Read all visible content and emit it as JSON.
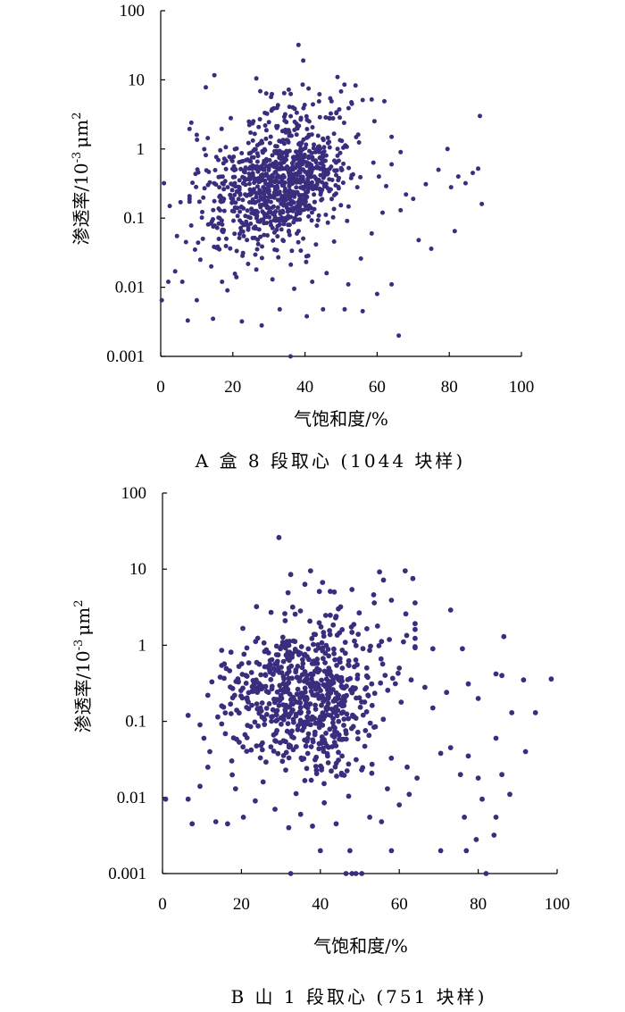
{
  "chart_data": [
    {
      "type": "scatter",
      "caption": "A 盒 8 段取心 (1044 块样)",
      "xlabel": "气饱和度/%",
      "ylabel_main": "渗透率/10",
      "ylabel_sup": "-3",
      "ylabel_unit": "μm",
      "ylabel_unit_sup": "2",
      "xlim": [
        0,
        100
      ],
      "ylim": [
        0.001,
        100
      ],
      "yscale": "log",
      "xticks": [
        "0",
        "20",
        "40",
        "60",
        "80",
        "100"
      ],
      "yticks": [
        "0.001",
        "0.01",
        "0.1",
        "1",
        "10",
        "100"
      ],
      "grid": false,
      "color": "#3a2d7e",
      "points": [
        [
          38.2,
          32
        ],
        [
          39.5,
          19
        ],
        [
          49,
          11
        ],
        [
          26.5,
          10.5
        ],
        [
          12.5,
          7.8
        ],
        [
          54,
          8.3
        ],
        [
          35.5,
          7.2
        ],
        [
          41,
          7.5
        ],
        [
          44,
          6.2
        ],
        [
          50,
          6.8
        ],
        [
          56,
          5.1
        ],
        [
          58.5,
          5.2
        ],
        [
          62,
          4.9
        ],
        [
          47,
          5.4
        ],
        [
          32.5,
          4.3
        ],
        [
          53,
          4.5
        ],
        [
          8.5,
          2.4
        ],
        [
          10,
          1.6
        ],
        [
          88.5,
          3.0
        ],
        [
          64,
          1.5
        ],
        [
          66.5,
          0.9
        ],
        [
          79.5,
          1.0
        ],
        [
          77,
          0.5
        ],
        [
          86.5,
          0.45
        ],
        [
          82.5,
          0.4
        ],
        [
          84.5,
          0.32
        ],
        [
          88,
          0.52
        ],
        [
          80.5,
          0.28
        ],
        [
          73.5,
          0.31
        ],
        [
          89,
          0.16
        ],
        [
          81.5,
          0.065
        ],
        [
          71.5,
          0.048
        ],
        [
          75,
          0.036
        ],
        [
          66.5,
          0.13
        ],
        [
          68,
          0.22
        ],
        [
          70,
          0.19
        ],
        [
          62.5,
          0.29
        ],
        [
          60.5,
          0.4
        ],
        [
          64,
          0.6
        ],
        [
          0.9,
          0.32
        ],
        [
          2.1,
          0.012
        ],
        [
          4,
          0.017
        ],
        [
          0.3,
          0.0065
        ],
        [
          6,
          0.012
        ],
        [
          7.5,
          0.0033
        ],
        [
          10,
          0.0065
        ],
        [
          14.5,
          0.0035
        ],
        [
          11,
          0.025
        ],
        [
          18.5,
          0.009
        ],
        [
          22.5,
          0.0032
        ],
        [
          28,
          0.0028
        ],
        [
          33,
          0.0048
        ],
        [
          36,
          0.001
        ],
        [
          40.5,
          0.0038
        ],
        [
          45,
          0.0048
        ],
        [
          51,
          0.0048
        ],
        [
          56,
          0.0045
        ],
        [
          66,
          0.002
        ],
        [
          60,
          0.008
        ],
        [
          64,
          0.011
        ],
        [
          2.5,
          0.15
        ],
        [
          5.5,
          0.17
        ],
        [
          8,
          0.19
        ],
        [
          4.5,
          0.055
        ],
        [
          7,
          0.045
        ],
        [
          9.5,
          0.035
        ],
        [
          14,
          0.02
        ],
        [
          17,
          0.012
        ],
        [
          21,
          0.014
        ],
        [
          26.5,
          0.018
        ],
        [
          31,
          0.013
        ],
        [
          37,
          0.0095
        ],
        [
          42,
          0.012
        ],
        [
          46,
          0.016
        ],
        [
          52,
          0.011
        ],
        [
          55.5,
          0.026
        ],
        [
          58.5,
          0.06
        ],
        [
          61.5,
          0.12
        ]
      ],
      "clusters": [
        {
          "cx": 30,
          "cy": 0.3,
          "sx": 9,
          "sy": 0.4,
          "n": 520,
          "xmin": 8,
          "xmax": 62
        },
        {
          "cx": 40,
          "cy": 0.5,
          "sx": 7,
          "sy": 0.35,
          "n": 260,
          "xmin": 20,
          "xmax": 60
        },
        {
          "cx": 28,
          "cy": 0.08,
          "sx": 8,
          "sy": 0.35,
          "n": 110,
          "xmin": 10,
          "xmax": 55
        },
        {
          "cx": 38,
          "cy": 2.0,
          "sx": 9,
          "sy": 0.3,
          "n": 70,
          "xmin": 12,
          "xmax": 62
        }
      ]
    },
    {
      "type": "scatter",
      "caption": "B 山 1 段取心 (751 块样)",
      "xlabel": "气饱和度/%",
      "ylabel_main": "渗透率/10",
      "ylabel_sup": "-3",
      "ylabel_unit": "μm",
      "ylabel_unit_sup": "2",
      "xlim": [
        0,
        100
      ],
      "ylim": [
        0.001,
        100
      ],
      "yscale": "log",
      "xticks": [
        "0",
        "20",
        "40",
        "60",
        "80",
        "100"
      ],
      "yticks": [
        "0.001",
        "0.01",
        "0.1",
        "1",
        "10",
        "100"
      ],
      "grid": false,
      "color": "#3a2d7e",
      "points": [
        [
          29.5,
          26
        ],
        [
          32.5,
          8.5
        ],
        [
          37.5,
          9.5
        ],
        [
          55,
          9.2
        ],
        [
          61.5,
          9.5
        ],
        [
          56,
          7.2
        ],
        [
          42.5,
          5.1
        ],
        [
          48,
          5.4
        ],
        [
          53.5,
          4.6
        ],
        [
          58,
          3.9
        ],
        [
          64,
          3.6
        ],
        [
          73,
          2.9
        ],
        [
          27.5,
          2.7
        ],
        [
          31,
          2.6
        ],
        [
          44,
          2.4
        ],
        [
          86.5,
          1.3
        ],
        [
          76,
          0.9
        ],
        [
          84.5,
          0.42
        ],
        [
          98.5,
          0.36
        ],
        [
          91.5,
          0.35
        ],
        [
          88.5,
          0.13
        ],
        [
          94.5,
          0.13
        ],
        [
          80,
          0.2
        ],
        [
          77.5,
          0.31
        ],
        [
          72,
          0.24
        ],
        [
          68.5,
          0.15
        ],
        [
          70.5,
          0.038
        ],
        [
          73,
          0.045
        ],
        [
          75.5,
          0.02
        ],
        [
          77.5,
          0.035
        ],
        [
          80,
          0.018
        ],
        [
          84.5,
          0.06
        ],
        [
          86,
          0.02
        ],
        [
          81,
          0.0095
        ],
        [
          84.5,
          0.0055
        ],
        [
          76.5,
          0.0055
        ],
        [
          84,
          0.0032
        ],
        [
          88,
          0.011
        ],
        [
          92,
          0.04
        ],
        [
          79.5,
          0.0028
        ],
        [
          70.5,
          0.002
        ],
        [
          77,
          0.002
        ],
        [
          82,
          0.001
        ],
        [
          86,
          0.4
        ],
        [
          0.8,
          0.0095
        ],
        [
          6.5,
          0.0095
        ],
        [
          7.5,
          0.0045
        ],
        [
          9.5,
          0.014
        ],
        [
          13.5,
          0.0048
        ],
        [
          16.5,
          0.0045
        ],
        [
          6.5,
          0.12
        ],
        [
          9.5,
          0.09
        ],
        [
          11.5,
          0.22
        ],
        [
          12.5,
          0.33
        ],
        [
          10.5,
          0.06
        ],
        [
          12,
          0.04
        ],
        [
          11.5,
          0.025
        ],
        [
          20.5,
          0.0055
        ],
        [
          23.5,
          0.009
        ],
        [
          28.5,
          0.007
        ],
        [
          32,
          0.004
        ],
        [
          32.5,
          0.001
        ],
        [
          38,
          0.0042
        ],
        [
          40,
          0.002
        ],
        [
          44,
          0.0045
        ],
        [
          46.5,
          0.001
        ],
        [
          47.5,
          0.002
        ],
        [
          50.5,
          0.001
        ],
        [
          52.5,
          0.0055
        ],
        [
          55.5,
          0.0048
        ],
        [
          58,
          0.002
        ],
        [
          49,
          0.001
        ],
        [
          48,
          0.001
        ],
        [
          60,
          0.008
        ],
        [
          57,
          0.013
        ],
        [
          62.5,
          0.011
        ],
        [
          64.5,
          0.018
        ],
        [
          35,
          0.006
        ],
        [
          41,
          0.0085
        ],
        [
          25.5,
          0.016
        ],
        [
          18.5,
          0.013
        ],
        [
          60,
          0.5
        ],
        [
          63,
          0.35
        ],
        [
          66.5,
          0.28
        ],
        [
          68.5,
          0.9
        ]
      ],
      "clusters": [
        {
          "cx": 33,
          "cy": 0.3,
          "sx": 7.5,
          "sy": 0.4,
          "n": 300,
          "xmin": 15,
          "xmax": 62
        },
        {
          "cx": 43,
          "cy": 0.18,
          "sx": 6.5,
          "sy": 0.38,
          "n": 190,
          "xmin": 20,
          "xmax": 62
        },
        {
          "cx": 38,
          "cy": 0.05,
          "sx": 9,
          "sy": 0.4,
          "n": 80,
          "xmin": 15,
          "xmax": 62
        },
        {
          "cx": 45,
          "cy": 1.1,
          "sx": 10,
          "sy": 0.3,
          "n": 55,
          "xmin": 18,
          "xmax": 64
        },
        {
          "cx": 22,
          "cy": 0.2,
          "sx": 4,
          "sy": 0.4,
          "n": 40,
          "xmin": 14,
          "xmax": 30
        }
      ]
    }
  ]
}
